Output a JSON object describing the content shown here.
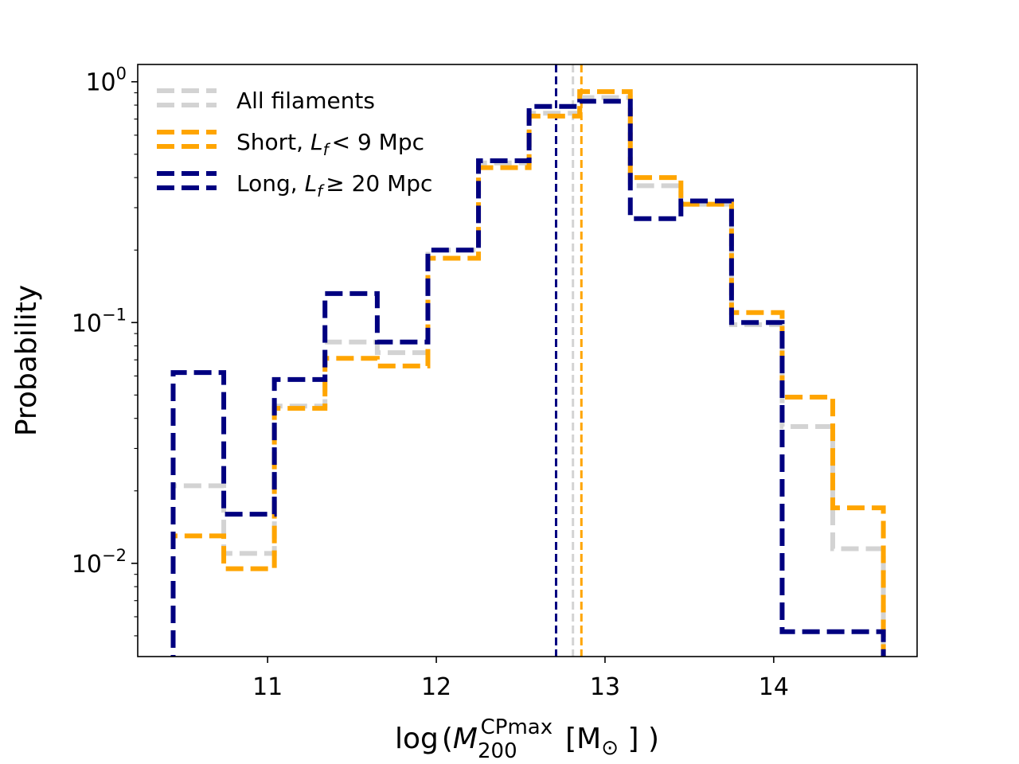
{
  "chart_data": {
    "type": "histogram",
    "xlabel": "log(M200^CPmax [M⊙])",
    "ylabel": "Probability",
    "xlim": [
      10.23,
      14.85
    ],
    "ylim": [
      0.0041,
      1.18
    ],
    "yscale": "log",
    "x_ticks": [
      11,
      12,
      13,
      14
    ],
    "y_ticks": [
      {
        "value": 1.0,
        "base": "10",
        "exp": "0"
      },
      {
        "value": 0.1,
        "base": "10",
        "exp": "−1"
      },
      {
        "value": 0.01,
        "base": "10",
        "exp": "−2"
      }
    ],
    "bin_edges": [
      10.44,
      10.74,
      11.04,
      11.34,
      11.65,
      11.95,
      12.25,
      12.55,
      12.85,
      13.15,
      13.45,
      13.75,
      14.05,
      14.35,
      14.65
    ],
    "series": [
      {
        "name": "All filaments",
        "legend": {
          "pre": "All filaments",
          "sym": "",
          "post": ""
        },
        "color": "#d3d3d3",
        "values": [
          0.021,
          0.011,
          0.045,
          0.083,
          0.075,
          0.2,
          0.46,
          0.74,
          0.86,
          0.37,
          0.31,
          0.098,
          0.037,
          0.0115
        ],
        "median": 12.81
      },
      {
        "name": "Short, Lf < 9 Mpc",
        "legend": {
          "pre": "Short, ",
          "sym": "< 9 Mpc",
          "post": ""
        },
        "color": "#ffa500",
        "values": [
          0.013,
          0.0095,
          0.044,
          0.071,
          0.066,
          0.185,
          0.44,
          0.72,
          0.91,
          0.4,
          0.31,
          0.11,
          0.049,
          0.017
        ],
        "median": 12.86
      },
      {
        "name": "Long, Lf ≥ 20 Mpc",
        "legend": {
          "pre": "Long, ",
          "sym": "≥ 20 Mpc",
          "post": ""
        },
        "color": "#000080",
        "values": [
          0.062,
          0.016,
          0.058,
          0.132,
          0.083,
          0.2,
          0.47,
          0.79,
          0.83,
          0.27,
          0.32,
          0.1,
          0.0052,
          0.0052
        ],
        "median": 12.71
      }
    ],
    "legend_position": "top-left",
    "grid": false
  }
}
